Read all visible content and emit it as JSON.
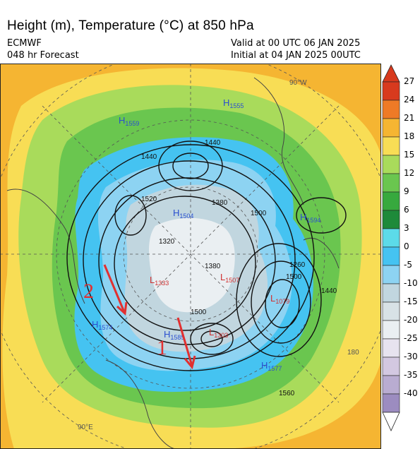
{
  "header": {
    "title": "Height (m), Temperature (°C) at 850 hPa",
    "model": "ECMWF",
    "forecast": "048 hr Forecast",
    "valid": "Valid at 00 UTC 06 JAN 2025",
    "initial": "Initial at 04 JAN 2025 00UTC"
  },
  "colorbar": {
    "labels": [
      "27",
      "24",
      "21",
      "18",
      "15",
      "12",
      "9",
      "6",
      "3",
      "0",
      "-5",
      "-10",
      "-15",
      "-20",
      "-25",
      "-30",
      "-35",
      "-40"
    ],
    "colors": [
      "#d83a1e",
      "#ee7a26",
      "#f5b532",
      "#f8dd55",
      "#a9db5b",
      "#6ac64f",
      "#37a93e",
      "#1e8a3a",
      "#5cdbe9",
      "#45c3f1",
      "#8dd3f2",
      "#c1d6df",
      "#d8e2e6",
      "#eaeff2",
      "#e7e3ef",
      "#d3c8e1",
      "#b9acd1",
      "#9c8cc0"
    ]
  },
  "map": {
    "colors": {
      "warm": "#f5b532",
      "yellow": "#f8dd55",
      "lightgreen": "#a9db5b",
      "green": "#6ac64f",
      "darkgreen": "#37a93e",
      "cyan": "#45c3f1",
      "lightblue": "#8dd3f2",
      "grey": "#c1d6df",
      "pale": "#eaeff2",
      "annot": "#e23030",
      "highs": "#2a4fd0",
      "lows": "#d03030"
    },
    "centers": [
      {
        "letter": "H",
        "value": "1559",
        "kind": "high"
      },
      {
        "letter": "H",
        "value": "1555",
        "kind": "high"
      },
      {
        "letter": "H",
        "value": "1594",
        "kind": "high"
      },
      {
        "letter": "H",
        "value": "1574",
        "kind": "high"
      },
      {
        "letter": "H",
        "value": "1577",
        "kind": "high"
      },
      {
        "letter": "H",
        "value": "1585",
        "kind": "high"
      },
      {
        "letter": "H",
        "value": "1504",
        "kind": "high"
      },
      {
        "letter": "L",
        "value": "1079",
        "kind": "low"
      },
      {
        "letter": "L",
        "value": "1303",
        "kind": "low"
      },
      {
        "letter": "L",
        "value": "1333",
        "kind": "low"
      },
      {
        "letter": "L",
        "value": "1507",
        "kind": "low"
      }
    ],
    "contour_labels": [
      "1440",
      "1440",
      "1500",
      "1500",
      "1500",
      "1320",
      "1380",
      "1260",
      "1440",
      "1560",
      "1380",
      "1520"
    ],
    "graticule_labels": [
      "90°E",
      "180",
      "90°W"
    ],
    "annotations": [
      "1",
      "2"
    ]
  }
}
